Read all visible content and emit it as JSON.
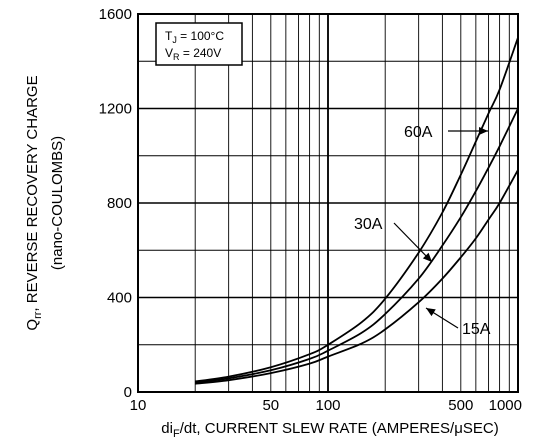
{
  "chart_data": {
    "type": "line",
    "title": "",
    "xlabel": {
      "pre": "di",
      "sub": "F",
      "post": "/dt, CURRENT SLEW RATE (AMPERES/μSEC)"
    },
    "ylabel": {
      "main_pre": "Q",
      "main_sub": "rr",
      "main_post": ", REVERSE RECOVERY CHARGE",
      "unit": "(nano-COULOMBS)"
    },
    "x_scale": "log",
    "xlim": [
      10,
      1000
    ],
    "ylim": [
      0,
      1600
    ],
    "x_ticks": [
      10,
      50,
      100,
      500,
      1000
    ],
    "y_ticks": [
      0,
      400,
      800,
      1200,
      1600
    ],
    "grid": true,
    "conditions": [
      {
        "pre": "T",
        "sub": "J",
        "post": " = 100°C"
      },
      {
        "pre": "V",
        "sub": "R",
        "post": " = 240V"
      }
    ],
    "series": [
      {
        "name": "60A",
        "x": [
          20,
          30,
          50,
          80,
          100,
          150,
          200,
          300,
          400,
          500,
          600,
          700,
          800,
          1000
        ],
        "y": [
          45,
          65,
          105,
          160,
          200,
          295,
          395,
          590,
          760,
          920,
          1060,
          1180,
          1280,
          1500
        ]
      },
      {
        "name": "30A",
        "x": [
          20,
          30,
          50,
          80,
          100,
          150,
          200,
          300,
          400,
          500,
          600,
          700,
          800,
          1000
        ],
        "y": [
          40,
          58,
          92,
          140,
          175,
          250,
          330,
          480,
          620,
          740,
          850,
          950,
          1040,
          1200
        ]
      },
      {
        "name": "15A",
        "x": [
          20,
          30,
          50,
          80,
          100,
          150,
          200,
          300,
          400,
          500,
          600,
          700,
          800,
          1000
        ],
        "y": [
          35,
          50,
          80,
          120,
          150,
          205,
          265,
          380,
          480,
          570,
          650,
          730,
          800,
          940
        ]
      }
    ],
    "annotations": [
      {
        "label": "60A",
        "series": 0
      },
      {
        "label": "30A",
        "series": 1
      },
      {
        "label": "15A",
        "series": 2
      }
    ]
  }
}
